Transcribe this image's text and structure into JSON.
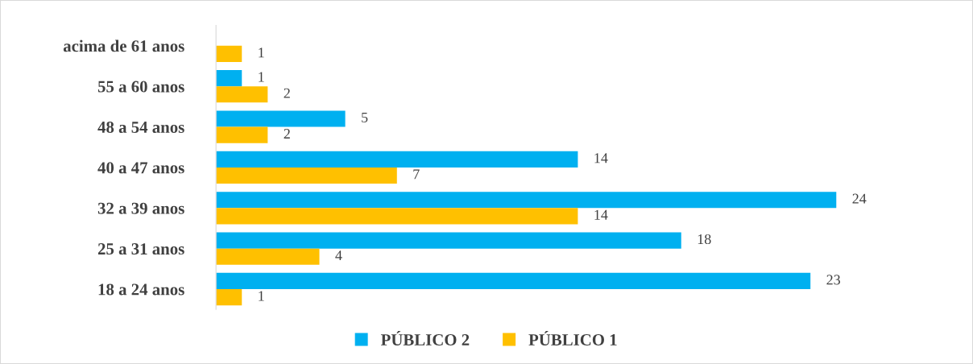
{
  "chart_data": {
    "type": "bar",
    "orientation": "horizontal",
    "categories": [
      "acima de 61 anos",
      "55 a 60 anos",
      "48 a 54 anos",
      "40 a 47 anos",
      "32 a 39 anos",
      "25 a 31 anos",
      "18 a 24 anos"
    ],
    "series": [
      {
        "name": "PÚBLICO 2",
        "color": "#00b0f0",
        "values": [
          null,
          1,
          5,
          14,
          24,
          18,
          23
        ]
      },
      {
        "name": "PÚBLICO 1",
        "color": "#ffc000",
        "values": [
          1,
          2,
          2,
          7,
          14,
          4,
          1
        ]
      }
    ],
    "tick_labels": "y",
    "data_labels": true,
    "grid": false,
    "legend": "bottom"
  }
}
